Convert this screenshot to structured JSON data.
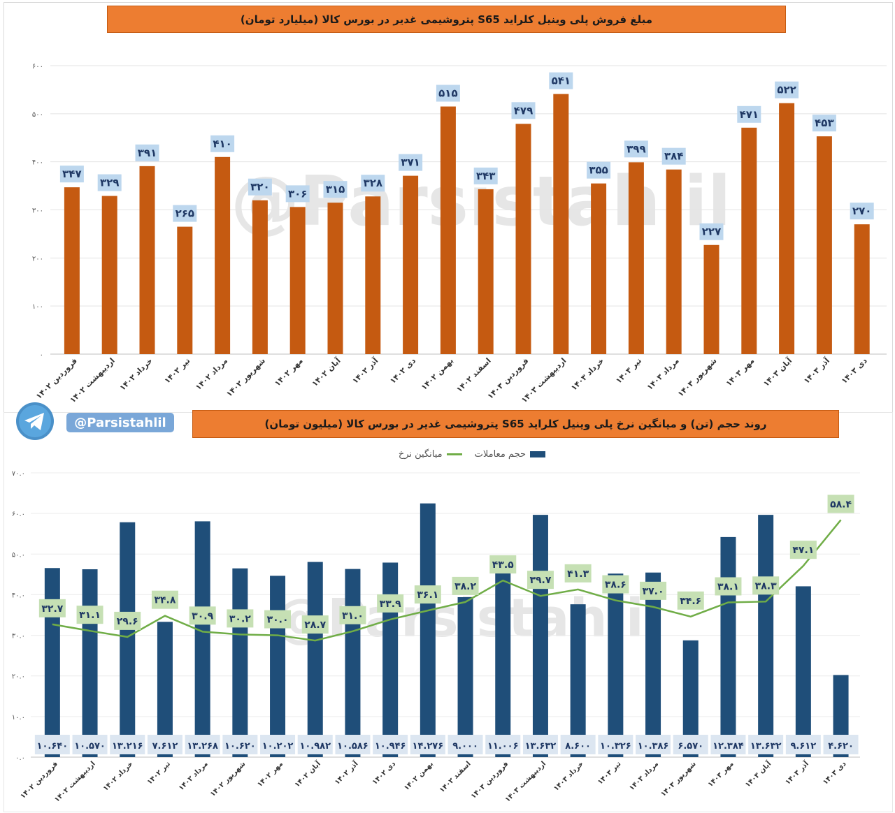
{
  "chart_data": [
    {
      "type": "bar",
      "title": "مبلغ فروش  پلی وینیل کلراید S65 پتروشیمی غدیر در بورس کالا (میلیارد تومان)",
      "categories": [
        "فروردین ۱۴۰۲",
        "اردیبهشت ۱۴۰۲",
        "خرداد ۱۴۰۲",
        "تیر ۱۴۰۲",
        "مرداد ۱۴۰۲",
        "شهریور ۱۴۰۲",
        "مهر ۱۴۰۲",
        "آبان ۱۴۰۲",
        "آذر ۱۴۰۲",
        "دی ۱۴۰۲",
        "بهمن ۱۴۰۲",
        "اسفند ۱۴۰۲",
        "فروردین ۱۴۰۳",
        "اردیبهشت ۱۴۰۳",
        "خرداد ۱۴۰۳",
        "تیر ۱۴۰۳",
        "مرداد ۱۴۰۳",
        "شهریور ۱۴۰۳",
        "مهر ۱۴۰۳",
        "آبان ۱۴۰۳",
        "آذر ۱۴۰۳",
        "دی ۱۴۰۳"
      ],
      "values": [
        347,
        329,
        391,
        265,
        410,
        320,
        306,
        315,
        328,
        371,
        515,
        343,
        479,
        541,
        355,
        399,
        384,
        227,
        471,
        522,
        453,
        270
      ],
      "value_labels": [
        "۳۴۷",
        "۳۲۹",
        "۳۹۱",
        "۲۶۵",
        "۴۱۰",
        "۳۲۰",
        "۳۰۶",
        "۳۱۵",
        "۳۲۸",
        "۳۷۱",
        "۵۱۵",
        "۳۴۳",
        "۴۷۹",
        "۵۴۱",
        "۳۵۵",
        "۳۹۹",
        "۳۸۴",
        "۲۲۷",
        "۴۷۱",
        "۵۲۲",
        "۴۵۳",
        "۲۷۰"
      ],
      "ylim": [
        0,
        600
      ],
      "yticks": [
        0,
        100,
        200,
        300,
        400,
        500,
        600
      ],
      "ytick_labels": [
        "۰",
        "۱۰۰",
        "۲۰۰",
        "۳۰۰",
        "۴۰۰",
        "۵۰۰",
        "۶۰۰"
      ],
      "color": "#c55a11",
      "label_bg": "#bdd7ee"
    },
    {
      "type": "bar+line",
      "title": "روند حجم (تن) و میانگین نرخ  پلی وینیل کلراید S65 پتروشیمی غدیر در بورس کالا (میلیون تومان)",
      "categories": [
        "فروردین ۱۴۰۲",
        "اردیبهشت ۱۴۰۲",
        "خرداد ۱۴۰۲",
        "تیر ۱۴۰۲",
        "مرداد ۱۴۰۲",
        "شهریور ۱۴۰۲",
        "مهر ۱۴۰۲",
        "آبان ۱۴۰۲",
        "آذر ۱۴۰۲",
        "دی ۱۴۰۲",
        "بهمن ۱۴۰۲",
        "اسفند ۱۴۰۲",
        "فروردین ۱۴۰۳",
        "اردیبهشت ۱۴۰۳",
        "خرداد ۱۴۰۳",
        "تیر ۱۴۰۳",
        "مرداد ۱۴۰۳",
        "شهریور ۱۴۰۳",
        "مهر ۱۴۰۳",
        "آبان ۱۴۰۳",
        "آذر ۱۴۰۳",
        "دی ۱۴۰۳"
      ],
      "ylim": [
        0,
        70
      ],
      "yticks": [
        0,
        10,
        20,
        30,
        40,
        50,
        60,
        70
      ],
      "ytick_labels": [
        "۰.۰",
        "۱۰.۰",
        "۲۰.۰",
        "۳۰.۰",
        "۴۰.۰",
        "۵۰.۰",
        "۶۰.۰",
        "۷۰.۰"
      ],
      "legend": [
        "حجم معاملات",
        "میانگین نرخ"
      ],
      "series": [
        {
          "name": "حجم معاملات",
          "kind": "bar",
          "color": "#1f4e79",
          "values": [
            10640,
            10570,
            13216,
            7612,
            13268,
            10620,
            10202,
            10982,
            10586,
            10946,
            14276,
            9000,
            11006,
            13632,
            8600,
            10326,
            10386,
            6570,
            12384,
            13632,
            9612,
            4620
          ],
          "value_labels": [
            "۱۰.۶۴۰",
            "۱۰.۵۷۰",
            "۱۳.۲۱۶",
            "۷.۶۱۲",
            "۱۳.۲۶۸",
            "۱۰.۶۲۰",
            "۱۰.۲۰۲",
            "۱۰.۹۸۲",
            "۱۰.۵۸۶",
            "۱۰.۹۴۶",
            "۱۴.۲۷۶",
            "۹.۰۰۰",
            "۱۱.۰۰۶",
            "۱۳.۶۳۲",
            "۸.۶۰۰",
            "۱۰.۳۲۶",
            "۱۰.۳۸۶",
            "۶.۵۷۰",
            "۱۲.۳۸۴",
            "۱۳.۶۳۲",
            "۹.۶۱۲",
            "۴.۶۲۰"
          ]
        },
        {
          "name": "میانگین نرخ",
          "kind": "line",
          "color": "#70ad47",
          "values": [
            32.7,
            31.1,
            29.6,
            34.8,
            30.9,
            30.2,
            30.0,
            28.7,
            31.0,
            33.9,
            36.1,
            38.2,
            43.5,
            39.7,
            41.3,
            38.6,
            37.0,
            34.6,
            38.1,
            38.3,
            47.1,
            58.4
          ],
          "value_labels": [
            "۳۲.۷",
            "۳۱.۱",
            "۲۹.۶",
            "۳۴.۸",
            "۳۰.۹",
            "۳۰.۲",
            "۳۰.۰",
            "۲۸.۷",
            "۳۱.۰",
            "۳۳.۹",
            "۳۶.۱",
            "۳۸.۲",
            "۴۳.۵",
            "۳۹.۷",
            "۴۱.۳",
            "۳۸.۶",
            "۳۷.۰",
            "۳۴.۶",
            "۳۸.۱",
            "۳۸.۳",
            "۴۷.۱",
            "۵۸.۴"
          ]
        }
      ],
      "label_bg": "#c6e0b4",
      "volume_label_bg": "#dce6f1"
    }
  ],
  "branding": {
    "handle": "@Parsistahlil",
    "watermark": "@Parsistahlil",
    "telegram_icon": "telegram-icon"
  }
}
